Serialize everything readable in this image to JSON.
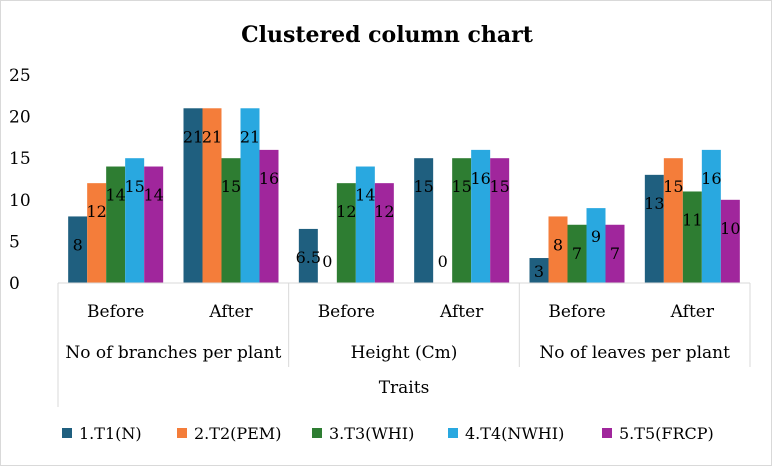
{
  "chart_data": {
    "type": "bar",
    "title": "Clustered column chart",
    "xlabel": "Traits",
    "ylabel": "",
    "ylim": [
      0,
      25
    ],
    "yticks": [
      0,
      5,
      10,
      15,
      20,
      25
    ],
    "grid": false,
    "legend_position": "bottom",
    "groups": [
      {
        "label": "No of branches per plant",
        "categories": [
          "Before",
          "After"
        ]
      },
      {
        "label": "Height (Cm)",
        "categories": [
          "Before",
          "After"
        ]
      },
      {
        "label": "No of leaves per plant",
        "categories": [
          "Before",
          "After"
        ]
      }
    ],
    "categories": [
      "Before",
      "After",
      "Before",
      "After",
      "Before",
      "After"
    ],
    "series": [
      {
        "name": "1.T1(N)",
        "color": "#1f5f7f",
        "values": [
          8,
          21,
          6.5,
          15,
          3,
          13
        ],
        "labels": [
          "8",
          "21",
          "6.5",
          "15",
          "3",
          "13"
        ]
      },
      {
        "name": "2.T2(PEM)",
        "color": "#f47d3a",
        "values": [
          12,
          21,
          0,
          0,
          8,
          15
        ],
        "labels": [
          "12",
          "21",
          "0",
          "0",
          "8",
          "15"
        ]
      },
      {
        "name": "3.T3(WHI)",
        "color": "#2e7d32",
        "values": [
          14,
          15,
          12,
          15,
          7,
          11
        ],
        "labels": [
          "14",
          "15",
          "12",
          "15",
          "7",
          "11"
        ]
      },
      {
        "name": "4.T4(NWHI)",
        "color": "#29a8e0",
        "values": [
          15,
          21,
          14,
          16,
          9,
          16
        ],
        "labels": [
          "15",
          "21",
          "14",
          "16",
          "9",
          "16"
        ]
      },
      {
        "name": "5.T5(FRCP)",
        "color": "#a0269c",
        "values": [
          14,
          16,
          12,
          15,
          7,
          10
        ],
        "labels": [
          "14",
          "16",
          "12",
          "15",
          "7",
          "10"
        ]
      }
    ]
  }
}
